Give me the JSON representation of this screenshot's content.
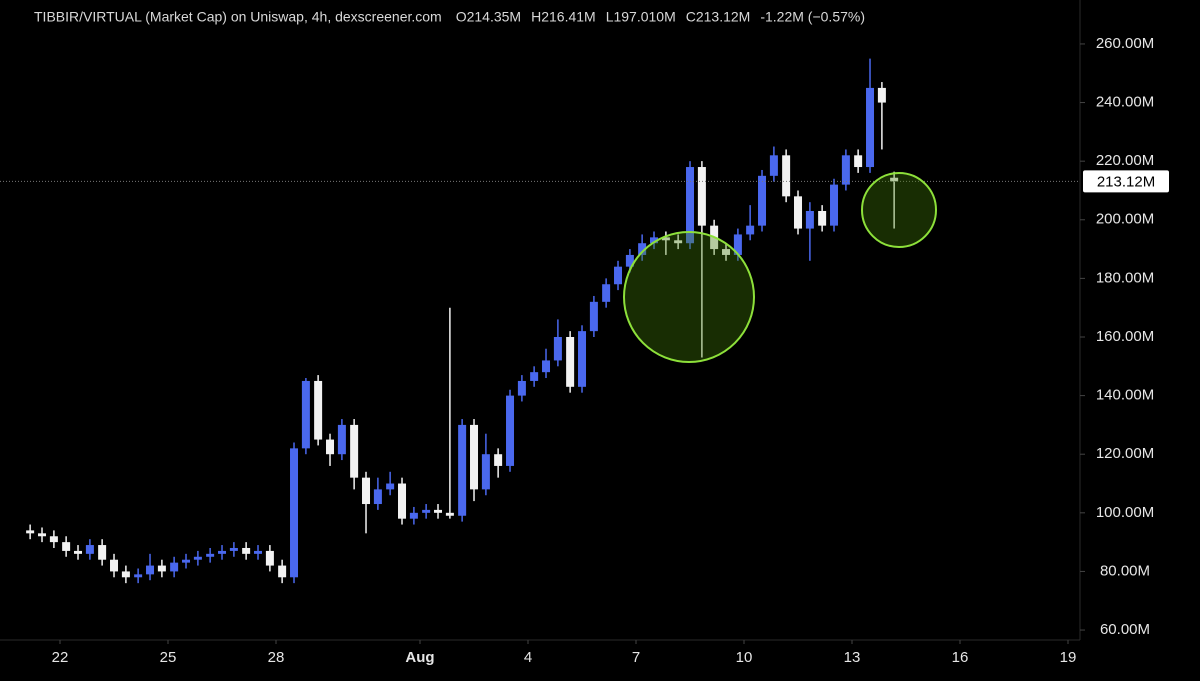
{
  "chart_data": {
    "type": "candlestick",
    "title": "TIBBIR/VIRTUAL (Market Cap) on Uniswap, 4h, dexscreener.com",
    "legend": [
      "O214.35M",
      "H216.41M",
      "L197.010M",
      "C213.12M",
      "-1.22M (−0.57%)"
    ],
    "last_price_label": "213.12M",
    "up_color": "#4a68ee",
    "down_color": "#f2f2f2",
    "x": [
      -0.83,
      -0.5,
      -0.17,
      0.17,
      0.5,
      0.83,
      1.17,
      1.5,
      1.83,
      2.17,
      2.5,
      2.83,
      3.17,
      3.5,
      3.83,
      4.17,
      4.5,
      4.83,
      5.17,
      5.5,
      5.83,
      6.17,
      6.5,
      6.83,
      7.17,
      7.5,
      7.83,
      8.17,
      8.5,
      8.83,
      9.17,
      9.5,
      9.83,
      10.17,
      10.5,
      10.83,
      11.17,
      11.5,
      11.83,
      12.17,
      12.5,
      12.83,
      13.17,
      13.5,
      13.83,
      14.17,
      14.5,
      14.83,
      15.17,
      15.5,
      15.83,
      16.17,
      16.5,
      16.83,
      17.17,
      17.5,
      17.83,
      18.17,
      18.5,
      18.83,
      19.17,
      19.5,
      19.83,
      20.17,
      20.5,
      20.83,
      21.17,
      21.5,
      21.83,
      22.17,
      22.5,
      22.83,
      23.17
    ],
    "open": [
      94,
      93,
      92,
      90,
      87,
      86,
      89,
      84,
      80,
      78,
      79,
      82,
      80,
      83,
      84,
      85,
      86,
      87,
      88,
      86,
      87,
      82,
      78,
      122,
      145,
      125,
      120,
      130,
      112,
      103,
      108,
      110,
      98,
      100,
      101,
      100,
      99,
      130,
      108,
      120,
      116,
      140,
      145,
      148,
      152,
      160,
      143,
      162,
      172,
      178,
      184,
      188,
      192,
      194,
      193,
      192,
      218,
      198,
      190,
      188,
      195,
      198,
      215,
      222,
      208,
      197,
      203,
      198,
      212,
      222,
      218,
      245,
      214.35
    ],
    "high": [
      96,
      95,
      94,
      92,
      89,
      91,
      91,
      86,
      82,
      81,
      86,
      84,
      85,
      86,
      87,
      88,
      89,
      90,
      90,
      89,
      89,
      84,
      124,
      146,
      147,
      127,
      132,
      132,
      114,
      112,
      114,
      112,
      102,
      103,
      103,
      170,
      132,
      132,
      127,
      122,
      142,
      147,
      150,
      156,
      166,
      162,
      164,
      174,
      180,
      186,
      190,
      195,
      196,
      196,
      195,
      220,
      220,
      200,
      192,
      197,
      205,
      217,
      225,
      224,
      210,
      206,
      205,
      214,
      224,
      224,
      255,
      247,
      216.41
    ],
    "low": [
      91,
      90,
      88,
      85,
      84,
      84,
      82,
      78,
      76,
      76,
      77,
      78,
      78,
      81,
      82,
      83,
      84,
      85,
      84,
      84,
      80,
      76,
      76,
      120,
      123,
      116,
      118,
      108,
      93,
      101,
      106,
      96,
      96,
      98,
      98,
      98,
      97,
      104,
      106,
      112,
      114,
      138,
      143,
      146,
      150,
      141,
      141,
      160,
      170,
      176,
      182,
      186,
      190,
      188,
      190,
      190,
      153,
      188,
      186,
      186,
      193,
      196,
      213,
      206,
      195,
      186,
      196,
      196,
      210,
      216,
      216,
      224,
      197.01
    ],
    "close": [
      93,
      92,
      90,
      87,
      86,
      89,
      84,
      80,
      78,
      79,
      82,
      80,
      83,
      84,
      85,
      86,
      87,
      88,
      86,
      87,
      82,
      78,
      122,
      145,
      125,
      120,
      130,
      112,
      103,
      108,
      110,
      98,
      100,
      101,
      100,
      99,
      130,
      108,
      120,
      116,
      140,
      145,
      148,
      152,
      160,
      143,
      162,
      172,
      178,
      184,
      188,
      192,
      194,
      193,
      192,
      218,
      198,
      190,
      188,
      195,
      198,
      215,
      222,
      208,
      197,
      203,
      198,
      212,
      222,
      218,
      245,
      240,
      213.12
    ],
    "xlim": [
      -1.667,
      28.333
    ],
    "xticks": [
      {
        "value": 0,
        "label": "22"
      },
      {
        "value": 3,
        "label": "25"
      },
      {
        "value": 6,
        "label": "28"
      },
      {
        "value": 10,
        "label": "Aug"
      },
      {
        "value": 13,
        "label": "4"
      },
      {
        "value": 16,
        "label": "7"
      },
      {
        "value": 19,
        "label": "10"
      },
      {
        "value": 22,
        "label": "13"
      },
      {
        "value": 25,
        "label": "16"
      },
      {
        "value": 28,
        "label": "19"
      }
    ],
    "ylim": [
      56.6,
      275
    ],
    "yticks": [
      {
        "value": 60,
        "label": "60.00M"
      },
      {
        "value": 80,
        "label": "80.00M"
      },
      {
        "value": 100,
        "label": "100.00M"
      },
      {
        "value": 120,
        "label": "120.00M"
      },
      {
        "value": 140,
        "label": "140.00M"
      },
      {
        "value": 160,
        "label": "160.00M"
      },
      {
        "value": 180,
        "label": "180.00M"
      },
      {
        "value": 200,
        "label": "200.00M"
      },
      {
        "value": 220,
        "label": "220.00M"
      },
      {
        "value": 240,
        "label": "240.00M"
      },
      {
        "value": 260,
        "label": "260.00M"
      }
    ]
  }
}
